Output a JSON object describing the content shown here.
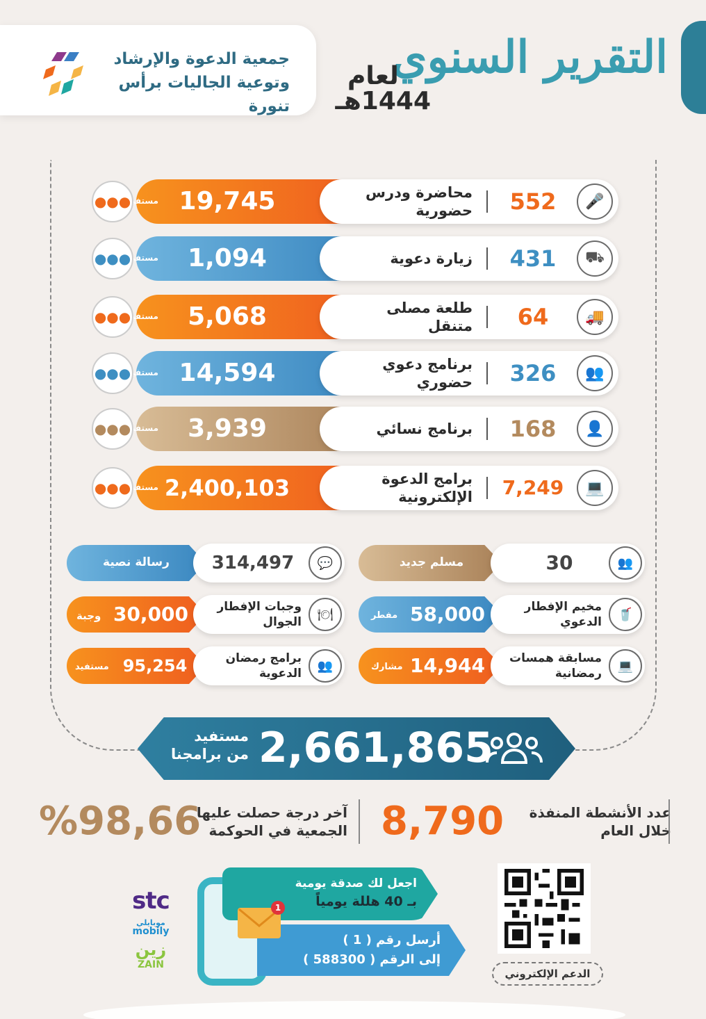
{
  "header": {
    "org_name_line1": "جمعية الدعوة والإرشاد",
    "org_name_line2": "وتوعية الجاليات برأس تنورة",
    "title": "التقرير السنوي",
    "year_prefix": "لعام",
    "year": "1444هـ"
  },
  "programs": [
    {
      "label": "محاضرة ودرس حضورية",
      "count": "552",
      "value": "19,745",
      "unit": "مستفيد",
      "color": "#ef6a1c",
      "icon": "microphone-icon"
    },
    {
      "label": "زيارة دعوية",
      "count": "431",
      "value": "1,094",
      "unit": "مستفيد",
      "color": "#3e8fc2",
      "icon": "route-icon"
    },
    {
      "label": "طلعة مصلى متنقل",
      "count": "64",
      "value": "5,068",
      "unit": "مستفيد",
      "color": "#ef6a1c",
      "icon": "truck-icon"
    },
    {
      "label": "برنامج دعوي حضوري",
      "count": "326",
      "value": "14,594",
      "unit": "مستفيد",
      "color": "#3e8fc2",
      "icon": "audience-icon"
    },
    {
      "label": "برنامج نسائي",
      "count": "168",
      "value": "3,939",
      "unit": "مستفيدة",
      "color": "#b38a5e",
      "icon": "woman-icon"
    },
    {
      "label": "برامج الدعوة الإلكترونية",
      "count": "7,249",
      "value": "2,400,103",
      "unit": "مستفيد",
      "color": "#ef6a1c",
      "icon": "computer-icon"
    }
  ],
  "small_cards": {
    "new_muslim": {
      "value": "30",
      "label": "مسلم جديد"
    },
    "text_message": {
      "value": "314,497",
      "label": "رسالة نصية"
    },
    "iftar_camp": {
      "label": "مخيم الإفطار الدعوي",
      "value": "58,000",
      "unit": "مفطر"
    },
    "mobile_iftar": {
      "label": "وجبات الإفطار الجوال",
      "value": "30,000",
      "unit": "وجبة"
    },
    "ramadan_contest": {
      "label": "مسابقة همسات رمضانية",
      "value": "14,944",
      "unit": "مشارك"
    },
    "ramadan_programs": {
      "label": "برامج رمضان الدعوية",
      "value": "95,254",
      "unit": "مستفيد"
    }
  },
  "total": {
    "value": "2,661,865",
    "label_line1": "مستفيد",
    "label_line2": "من برامجنا"
  },
  "stats": {
    "activities_label_line1": "عدد الأنشطة المنفذة",
    "activities_label_line2": "خلال العام",
    "activities_value": "8,790",
    "governance_label_line1": "آخر درجة حصلت عليها",
    "governance_label_line2": "الجمعية في الحوكمة",
    "governance_value": "%98,66"
  },
  "donation": {
    "line1": "اجعل لك صدقة يومية",
    "line2": "بـ 40 هللة يومياً",
    "line3": "أرسل رقم ( 1 )",
    "line4": "إلى الرقم ( 588300 )",
    "badge": "1"
  },
  "qr_label": "الدعم الإلكتروني",
  "operators": {
    "stc": "stc",
    "mobily": "mobily",
    "mobily_ar": "موبايلي",
    "zain_ar": "زين",
    "zain": "ZAIN"
  }
}
